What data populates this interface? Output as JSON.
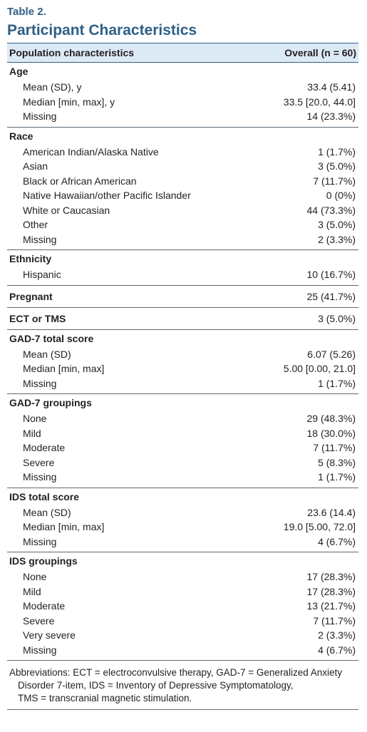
{
  "table_label": "Table 2.",
  "table_title": "Participant Characteristics",
  "header": {
    "col1": "Population characteristics",
    "col2": "Overall (n = 60)"
  },
  "sections": [
    {
      "title": "Age",
      "value": "",
      "rows": [
        {
          "label": "Mean (SD), y",
          "value": "33.4 (5.41)"
        },
        {
          "label": "Median [min, max], y",
          "value": "33.5 [20.0, 44.0]"
        },
        {
          "label": "Missing",
          "value": "14 (23.3%)"
        }
      ]
    },
    {
      "title": "Race",
      "value": "",
      "rows": [
        {
          "label": "American Indian/Alaska Native",
          "value": "1 (1.7%)"
        },
        {
          "label": "Asian",
          "value": "3 (5.0%)"
        },
        {
          "label": "Black or African American",
          "value": "7 (11.7%)"
        },
        {
          "label": "Native Hawaiian/other Pacific Islander",
          "value": "0 (0%)"
        },
        {
          "label": "White or Caucasian",
          "value": "44 (73.3%)"
        },
        {
          "label": "Other",
          "value": "3 (5.0%)"
        },
        {
          "label": "Missing",
          "value": "2 (3.3%)"
        }
      ]
    },
    {
      "title": "Ethnicity",
      "value": "",
      "rows": [
        {
          "label": "Hispanic",
          "value": "10 (16.7%)"
        }
      ]
    },
    {
      "title": "Pregnant",
      "value": "25 (41.7%)",
      "rows": []
    },
    {
      "title": "ECT or TMS",
      "value": "3 (5.0%)",
      "rows": []
    },
    {
      "title": "GAD-7 total score",
      "value": "",
      "rows": [
        {
          "label": "Mean (SD)",
          "value": "6.07 (5.26)"
        },
        {
          "label": "Median [min, max]",
          "value": "5.00 [0.00, 21.0]"
        },
        {
          "label": "Missing",
          "value": "1 (1.7%)"
        }
      ]
    },
    {
      "title": "GAD-7 groupings",
      "value": "",
      "rows": [
        {
          "label": "None",
          "value": "29 (48.3%)"
        },
        {
          "label": "Mild",
          "value": "18 (30.0%)"
        },
        {
          "label": "Moderate",
          "value": "7 (11.7%)"
        },
        {
          "label": "Severe",
          "value": "5 (8.3%)"
        },
        {
          "label": "Missing",
          "value": "1 (1.7%)"
        }
      ]
    },
    {
      "title": "IDS total score",
      "value": "",
      "rows": [
        {
          "label": "Mean (SD)",
          "value": "23.6 (14.4)"
        },
        {
          "label": "Median [min, max]",
          "value": "19.0 [5.00, 72.0]"
        },
        {
          "label": "Missing",
          "value": "4 (6.7%)"
        }
      ]
    },
    {
      "title": "IDS groupings",
      "value": "",
      "rows": [
        {
          "label": "None",
          "value": "17 (28.3%)"
        },
        {
          "label": "Mild",
          "value": "17 (28.3%)"
        },
        {
          "label": "Moderate",
          "value": "13 (21.7%)"
        },
        {
          "label": "Severe",
          "value": "7 (11.7%)"
        },
        {
          "label": "Very severe",
          "value": "2 (3.3%)"
        },
        {
          "label": "Missing",
          "value": "4 (6.7%)"
        }
      ]
    }
  ],
  "footnote": {
    "line1": "Abbreviations: ECT = electroconvulsive therapy, GAD-7 = Generalized Anxiety",
    "line2": "Disorder 7-item, IDS = Inventory of Depressive Symptomatology,",
    "line3": "TMS = transcranial magnetic stimulation."
  }
}
